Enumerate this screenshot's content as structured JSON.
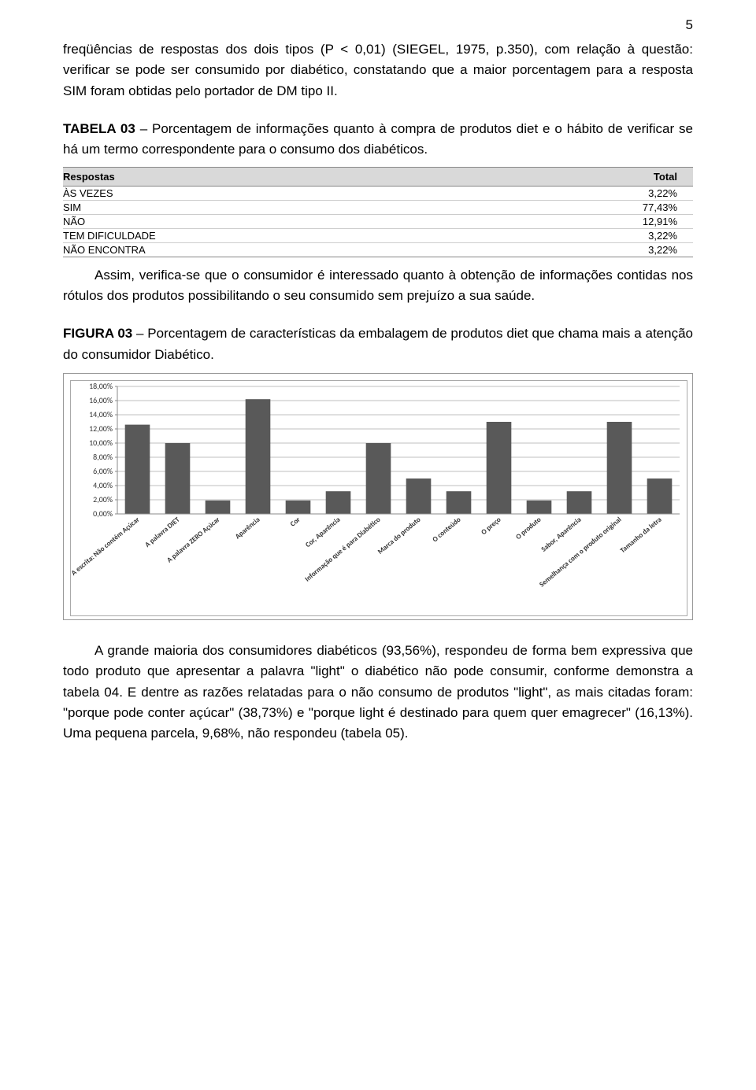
{
  "page_number": "5",
  "paragraph1": "freqüências de respostas dos dois tipos (P < 0,01) (SIEGEL, 1975, p.350), com relação à questão: verificar se pode ser consumido por diabético, constatando que a maior porcentagem para a resposta SIM foram obtidas pelo portador de DM tipo II.",
  "table3": {
    "title_bold": "TABELA 03",
    "title_rest": " – Porcentagem de informações quanto à compra de produtos diet e o hábito de verificar se há um termo correspondente para o consumo dos diabéticos.",
    "header_left": "Respostas",
    "header_right": "Total",
    "rows": [
      {
        "label": "ÀS VEZES",
        "value": "3,22%"
      },
      {
        "label": "SIM",
        "value": "77,43%"
      },
      {
        "label": "NÃO",
        "value": "12,91%"
      },
      {
        "label": "TEM DIFICULDADE",
        "value": "3,22%"
      },
      {
        "label": "NÃO ENCONTRA",
        "value": "3,22%"
      }
    ]
  },
  "paragraph2": "Assim, verifica-se que o consumidor é interessado quanto à obtenção de informações contidas nos rótulos dos produtos possibilitando o seu consumido sem prejuízo a sua saúde.",
  "figure3": {
    "title_bold": "FIGURA 03",
    "title_rest": " – Porcentagem de características da embalagem de produtos diet que chama mais a atenção do consumidor Diabético.",
    "type": "bar",
    "ymax": 18,
    "ytick_step": 2,
    "ytick_labels": [
      "0,00%",
      "2,00%",
      "4,00%",
      "6,00%",
      "8,00%",
      "10,00%",
      "12,00%",
      "14,00%",
      "16,00%",
      "18,00%"
    ],
    "categories": [
      "A escrita: Não contém Açúcar",
      "A palavra DIET",
      "A palavra ZERO Açúcar",
      "Aparência",
      "Cor",
      "Cor, Aparência",
      "Informação que é para Diabético",
      "Marca do produto",
      "O conteúdo",
      "O preço",
      "O produto",
      "Sabor, Aparência",
      "Semelhança com o produto original",
      "Tamanho da letra"
    ],
    "values": [
      12.6,
      10.0,
      1.9,
      16.2,
      1.9,
      3.2,
      10.0,
      5.0,
      3.2,
      13.0,
      1.9,
      3.2,
      13.0,
      5.0
    ],
    "bar_color": "#595959",
    "grid_color": "#bfbfbf",
    "axis_color": "#888888",
    "bg_color": "#ffffff",
    "outer_border": "#aaaaaa",
    "label_font_size": 9,
    "ylabel_font_size": 10
  },
  "paragraph3": "A grande maioria dos consumidores diabéticos (93,56%), respondeu de forma bem expressiva que todo produto que apresentar a palavra \"light\" o diabético não pode consumir, conforme demonstra a tabela 04. E dentre as razões relatadas para o não consumo de produtos \"light\", as mais citadas foram: \"porque pode conter açúcar\" (38,73%) e \"porque light é destinado para quem quer emagrecer\" (16,13%). Uma pequena parcela, 9,68%, não respondeu (tabela 05)."
}
